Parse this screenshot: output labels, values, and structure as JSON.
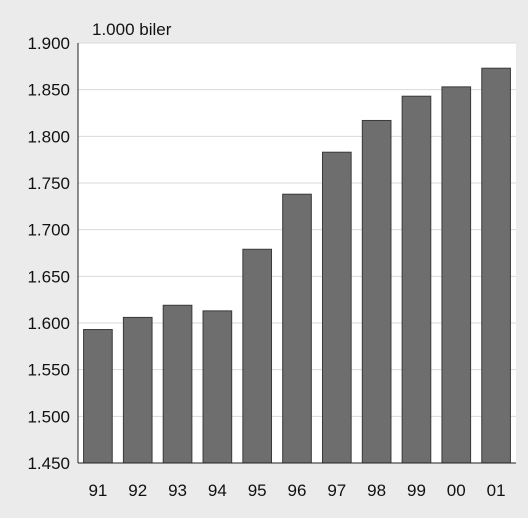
{
  "chart_data": {
    "type": "bar",
    "title": "",
    "unit_label": "1.000 biler",
    "xlabel": "",
    "ylabel": "",
    "categories": [
      "91",
      "92",
      "93",
      "94",
      "95",
      "96",
      "97",
      "98",
      "99",
      "00",
      "01"
    ],
    "values": [
      1593,
      1606,
      1619,
      1613,
      1679,
      1738,
      1783,
      1817,
      1843,
      1853,
      1873
    ],
    "ylim": [
      1450,
      1900
    ],
    "yticks": [
      1450,
      1500,
      1550,
      1600,
      1650,
      1700,
      1750,
      1800,
      1850,
      1900
    ],
    "ytick_labels": [
      "1.450",
      "1.500",
      "1.550",
      "1.600",
      "1.650",
      "1.700",
      "1.750",
      "1.800",
      "1.850",
      "1.900"
    ],
    "grid": true,
    "colors": {
      "background": "#ebebeb",
      "plot_background": "#ffffff",
      "bar_fill": "#6e6e6e",
      "bar_stroke": "#3a3a3a",
      "grid": "#d9d9d9",
      "axis": "#222222"
    }
  }
}
